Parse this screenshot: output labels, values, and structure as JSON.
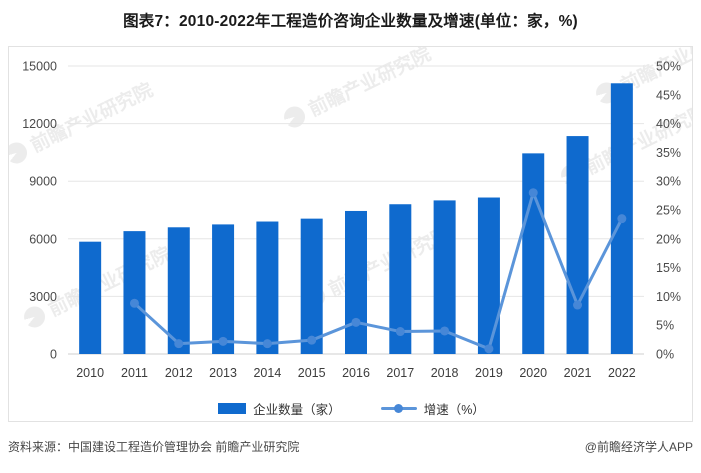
{
  "header": {
    "title": "图表7：2010-2022年工程造价咨询企业数量及增速(单位：家，%)"
  },
  "chart_data": {
    "type": "combo-bar-line",
    "categories": [
      "2010",
      "2011",
      "2012",
      "2013",
      "2014",
      "2015",
      "2016",
      "2017",
      "2018",
      "2019",
      "2020",
      "2021",
      "2022"
    ],
    "series": [
      {
        "name": "企业数量（家）",
        "type": "bar",
        "axis": "left",
        "color": "#0f6ace",
        "values": [
          5850,
          6400,
          6600,
          6750,
          6900,
          7050,
          7450,
          7800,
          8000,
          8150,
          10450,
          11350,
          14100
        ]
      },
      {
        "name": "增速（%）",
        "type": "line",
        "axis": "right",
        "color": "#5b95da",
        "marker_color": "#4687d7",
        "values": [
          null,
          8.8,
          1.8,
          2.2,
          1.8,
          2.4,
          5.5,
          3.9,
          4.0,
          0.9,
          28.0,
          8.5,
          23.5
        ]
      }
    ],
    "left_axis": {
      "min": 0,
      "max": 15000,
      "step": 3000,
      "ticks": [
        "0",
        "3000",
        "6000",
        "9000",
        "12000",
        "15000"
      ]
    },
    "right_axis": {
      "min": 0,
      "max": 50,
      "step": 5,
      "ticks": [
        "0%",
        "5%",
        "10%",
        "15%",
        "20%",
        "25%",
        "30%",
        "35%",
        "40%",
        "45%",
        "50%"
      ]
    },
    "grid": "horizontal-only",
    "legend_position": "bottom"
  },
  "watermark": {
    "text": "前瞻产业研究院"
  },
  "footer": {
    "source": "资料来源：中国建设工程造价管理协会 前瞻产业研究院",
    "brand": "@前瞻经济学人APP"
  },
  "colors": {
    "grid": "#e6e6e6",
    "zero_axis": "#cfcfcf",
    "tick_label": "#4a4a4a",
    "year_label": "#3d3d3d"
  }
}
